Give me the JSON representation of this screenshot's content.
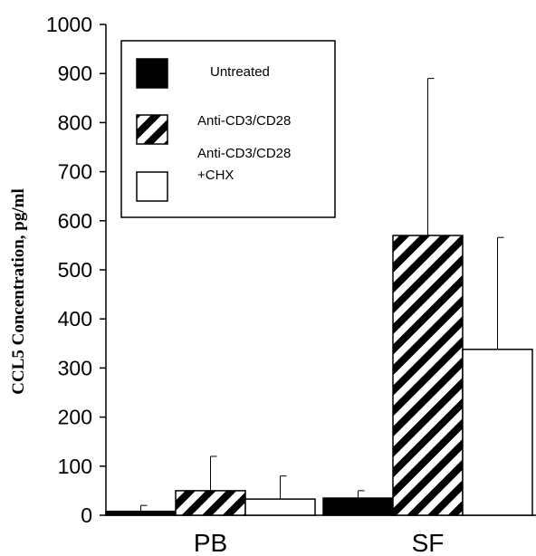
{
  "chart_data": {
    "type": "bar",
    "categories": [
      "PB",
      "SF"
    ],
    "series": [
      {
        "name": "Untreated",
        "values": [
          8,
          35
        ],
        "errors": [
          12,
          15
        ],
        "pattern": "solid",
        "color": "#000000"
      },
      {
        "name": "Anti-CD3/CD28",
        "values": [
          50,
          570
        ],
        "errors": [
          70,
          320
        ],
        "pattern": "hatch",
        "color": "#000000"
      },
      {
        "name": "Anti-CD3/CD28\n+CHX",
        "values": [
          33,
          338
        ],
        "errors": [
          47,
          228
        ],
        "pattern": "open",
        "color": "#ffffff"
      }
    ],
    "title": "",
    "xlabel": "",
    "ylabel": "CCL5 Concentration, pg/ml",
    "ylim": [
      0,
      1000
    ],
    "yticks": [
      0,
      100,
      200,
      300,
      400,
      500,
      600,
      700,
      800,
      900,
      1000
    ],
    "grid": false,
    "legend_position": "top-left"
  }
}
